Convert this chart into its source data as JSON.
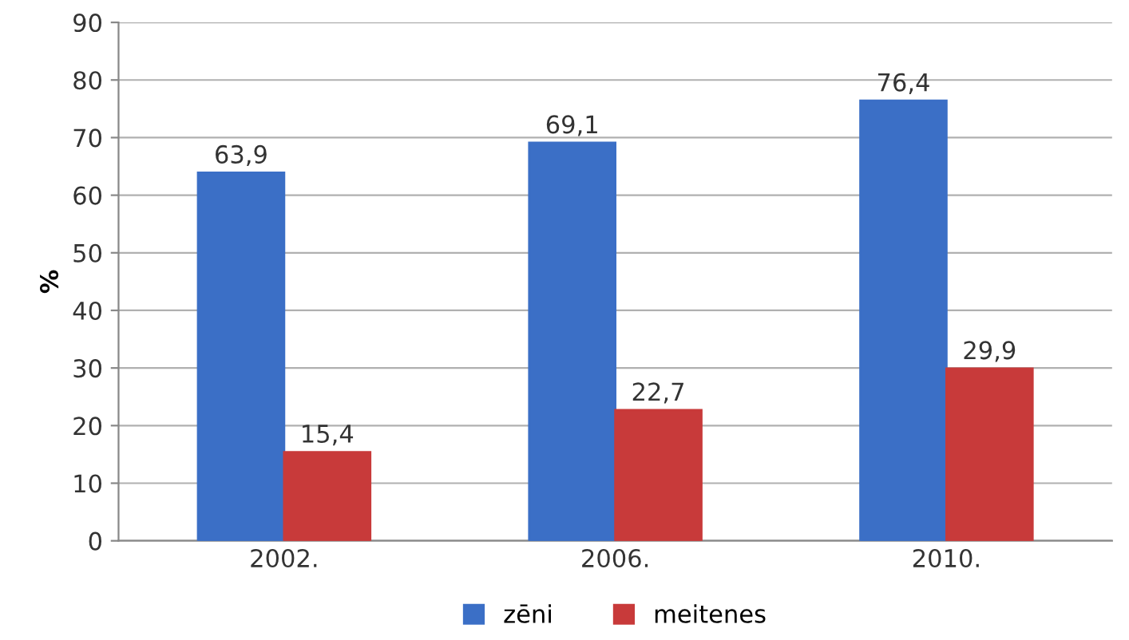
{
  "chart_data": {
    "type": "bar",
    "ylabel": "%",
    "categories": [
      "2002.",
      "2006.",
      "2010."
    ],
    "series": [
      {
        "name": "zēni",
        "color": "#3b6fc6",
        "values": [
          63.9,
          69.1,
          76.4
        ],
        "value_labels": [
          "63,9",
          "69,1",
          "76,4"
        ]
      },
      {
        "name": "meitenes",
        "color": "#c83a3a",
        "values": [
          15.4,
          22.7,
          29.9
        ],
        "value_labels": [
          "15,4",
          "22,7",
          "29,9"
        ]
      }
    ],
    "ylim": [
      0,
      90
    ],
    "yticks": [
      0,
      10,
      20,
      30,
      40,
      50,
      60,
      70,
      80,
      90
    ],
    "grid": "y",
    "legend": "bottom"
  }
}
